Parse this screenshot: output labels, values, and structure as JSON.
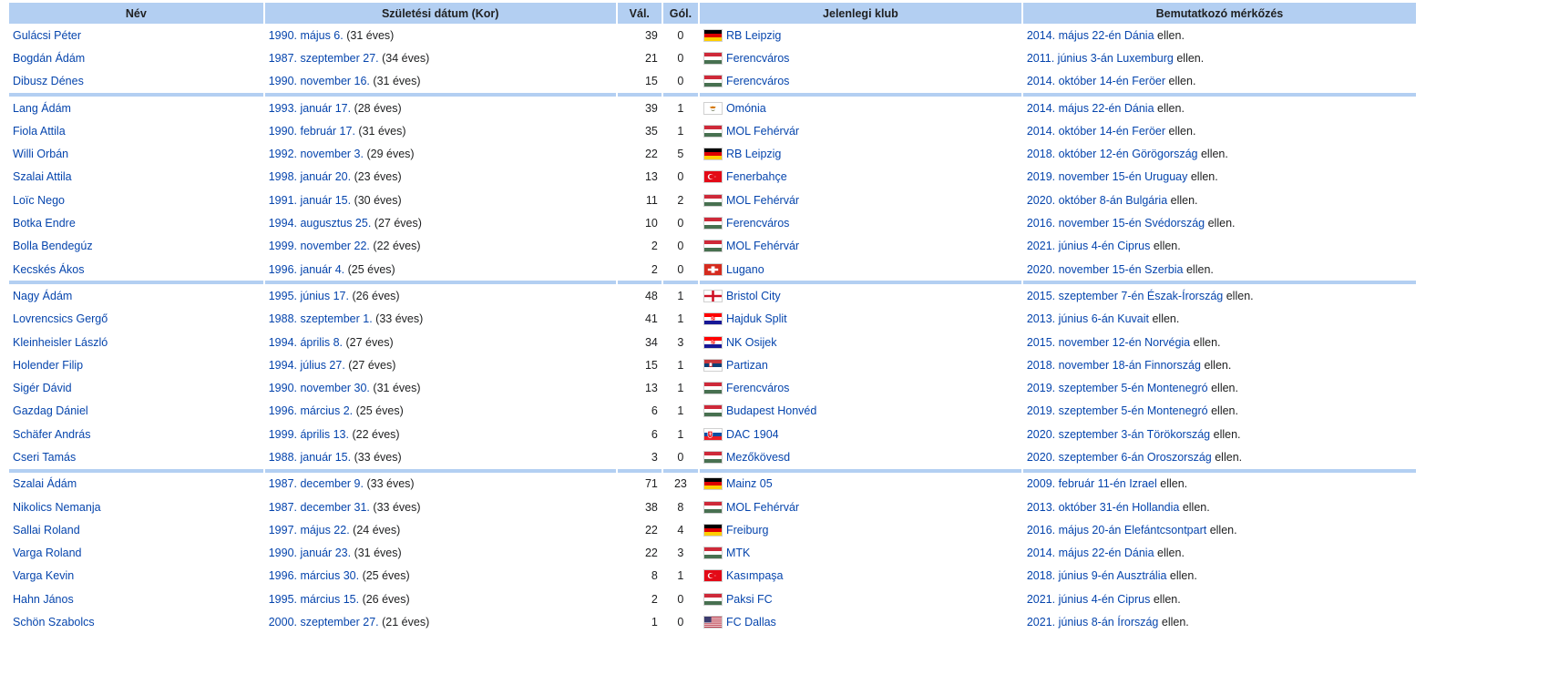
{
  "headers": {
    "name": "Név",
    "dob": "Születési dátum (Kor)",
    "caps": "Vál.",
    "goals": "Gól.",
    "club": "Jelenlegi klub",
    "debut": "Bemutatkozó mérkőzés"
  },
  "groups": [
    [
      {
        "name": "Gulácsi Péter",
        "dob": "1990. május 6.",
        "age": "(31 éves)",
        "caps": "39",
        "goals": "0",
        "flag": "germany-flag",
        "club": "RB Leipzig",
        "debut_date": "2014. május 22-én",
        "debut_opp": "Dánia",
        "debut_suffix": "ellen."
      },
      {
        "name": "Bogdán Ádám",
        "dob": "1987. szeptember 27.",
        "age": "(34 éves)",
        "caps": "21",
        "goals": "0",
        "flag": "hungary-flag",
        "club": "Ferencváros",
        "debut_date": "2011. június 3-án",
        "debut_opp": "Luxemburg",
        "debut_suffix": "ellen."
      },
      {
        "name": "Dibusz Dénes",
        "dob": "1990. november 16.",
        "age": "(31 éves)",
        "caps": "15",
        "goals": "0",
        "flag": "hungary-flag",
        "club": "Ferencváros",
        "debut_date": "2014. október 14-én",
        "debut_opp": "Feröer",
        "debut_suffix": "ellen."
      }
    ],
    [
      {
        "name": "Lang Ádám",
        "dob": "1993. január 17.",
        "age": "(28 éves)",
        "caps": "39",
        "goals": "1",
        "flag": "cyprus-flag",
        "club": "Omónia",
        "debut_date": "2014. május 22-én",
        "debut_opp": "Dánia",
        "debut_suffix": "ellen."
      },
      {
        "name": "Fiola Attila",
        "dob": "1990. február 17.",
        "age": "(31 éves)",
        "caps": "35",
        "goals": "1",
        "flag": "hungary-flag",
        "club": "MOL Fehérvár",
        "debut_date": "2014. október 14-én",
        "debut_opp": "Feröer",
        "debut_suffix": "ellen."
      },
      {
        "name": "Willi Orbán",
        "dob": "1992. november 3.",
        "age": "(29 éves)",
        "caps": "22",
        "goals": "5",
        "flag": "germany-flag",
        "club": "RB Leipzig",
        "debut_date": "2018. október 12-én",
        "debut_opp": "Görögország",
        "debut_suffix": "ellen."
      },
      {
        "name": "Szalai Attila",
        "dob": "1998. január 20.",
        "age": "(23 éves)",
        "caps": "13",
        "goals": "0",
        "flag": "turkey-flag",
        "club": "Fenerbahçe",
        "debut_date": "2019. november 15-én",
        "debut_opp": "Uruguay",
        "debut_suffix": "ellen."
      },
      {
        "name": "Loïc Nego",
        "dob": "1991. január 15.",
        "age": "(30 éves)",
        "caps": "11",
        "goals": "2",
        "flag": "hungary-flag",
        "club": "MOL Fehérvár",
        "debut_date": "2020. október 8-án",
        "debut_opp": "Bulgária",
        "debut_suffix": "ellen."
      },
      {
        "name": "Botka Endre",
        "dob": "1994. augusztus 25.",
        "age": "(27 éves)",
        "caps": "10",
        "goals": "0",
        "flag": "hungary-flag",
        "club": "Ferencváros",
        "debut_date": "2016. november 15-én",
        "debut_opp": "Svédország",
        "debut_suffix": "ellen."
      },
      {
        "name": "Bolla Bendegúz",
        "dob": "1999. november 22.",
        "age": "(22 éves)",
        "caps": "2",
        "goals": "0",
        "flag": "hungary-flag",
        "club": "MOL Fehérvár",
        "debut_date": "2021. június 4-én",
        "debut_opp": "Ciprus",
        "debut_suffix": "ellen."
      },
      {
        "name": "Kecskés Ákos",
        "dob": "1996. január 4.",
        "age": "(25 éves)",
        "caps": "2",
        "goals": "0",
        "flag": "switzerland-flag",
        "club": "Lugano",
        "debut_date": "2020. november 15-én",
        "debut_opp": "Szerbia",
        "debut_suffix": "ellen."
      }
    ],
    [
      {
        "name": "Nagy Ádám",
        "dob": "1995. június 17.",
        "age": "(26 éves)",
        "caps": "48",
        "goals": "1",
        "flag": "england-flag",
        "club": "Bristol City",
        "debut_date": "2015. szeptember 7-én",
        "debut_opp": "Észak-Írország",
        "debut_suffix": "ellen."
      },
      {
        "name": "Lovrencsics Gergő",
        "dob": "1988. szeptember 1.",
        "age": "(33 éves)",
        "caps": "41",
        "goals": "1",
        "flag": "croatia-flag",
        "club": "Hajduk Split",
        "debut_date": "2013. június 6-án",
        "debut_opp": "Kuvait",
        "debut_suffix": "ellen."
      },
      {
        "name": "Kleinheisler László",
        "dob": "1994. április 8.",
        "age": "(27 éves)",
        "caps": "34",
        "goals": "3",
        "flag": "croatia-flag",
        "club": "NK Osijek",
        "debut_date": "2015. november 12-én",
        "debut_opp": "Norvégia",
        "debut_suffix": "ellen."
      },
      {
        "name": "Holender Filip",
        "dob": "1994. július 27.",
        "age": "(27 éves)",
        "caps": "15",
        "goals": "1",
        "flag": "serbia-flag",
        "club": "Partizan",
        "debut_date": "2018. november 18-án",
        "debut_opp": "Finnország",
        "debut_suffix": "ellen."
      },
      {
        "name": "Sigér Dávid",
        "dob": "1990. november 30.",
        "age": "(31 éves)",
        "caps": "13",
        "goals": "1",
        "flag": "hungary-flag",
        "club": "Ferencváros",
        "debut_date": "2019. szeptember 5-én",
        "debut_opp": "Montenegró",
        "debut_suffix": "ellen."
      },
      {
        "name": "Gazdag Dániel",
        "dob": "1996. március 2.",
        "age": "(25 éves)",
        "caps": "6",
        "goals": "1",
        "flag": "hungary-flag",
        "club": "Budapest Honvéd",
        "debut_date": "2019. szeptember 5-én",
        "debut_opp": "Montenegró",
        "debut_suffix": "ellen."
      },
      {
        "name": "Schäfer András",
        "dob": "1999. április 13.",
        "age": "(22 éves)",
        "caps": "6",
        "goals": "1",
        "flag": "slovakia-flag",
        "club": "DAC 1904",
        "debut_date": "2020. szeptember 3-án",
        "debut_opp": "Törökország",
        "debut_suffix": "ellen."
      },
      {
        "name": "Cseri Tamás",
        "dob": "1988. január 15.",
        "age": "(33 éves)",
        "caps": "3",
        "goals": "0",
        "flag": "hungary-flag",
        "club": "Mezőkövesd",
        "debut_date": "2020. szeptember 6-án",
        "debut_opp": "Oroszország",
        "debut_suffix": "ellen."
      }
    ],
    [
      {
        "name": "Szalai Ádám",
        "dob": "1987. december 9.",
        "age": "(33 éves)",
        "caps": "71",
        "goals": "23",
        "flag": "germany-flag",
        "club": "Mainz 05",
        "debut_date": "2009. február 11-én",
        "debut_opp": "Izrael",
        "debut_suffix": "ellen."
      },
      {
        "name": "Nikolics Nemanja",
        "dob": "1987. december 31.",
        "age": "(33 éves)",
        "caps": "38",
        "goals": "8",
        "flag": "hungary-flag",
        "club": "MOL Fehérvár",
        "debut_date": "2013. október 31-én",
        "debut_opp": "Hollandia",
        "debut_suffix": "ellen."
      },
      {
        "name": "Sallai Roland",
        "dob": "1997. május 22.",
        "age": "(24 éves)",
        "caps": "22",
        "goals": "4",
        "flag": "germany-flag",
        "club": "Freiburg",
        "debut_date": "2016. május 20-án",
        "debut_opp": "Elefántcsontpart",
        "debut_suffix": "ellen."
      },
      {
        "name": "Varga Roland",
        "dob": "1990. január 23.",
        "age": "(31 éves)",
        "caps": "22",
        "goals": "3",
        "flag": "hungary-flag",
        "club": "MTK",
        "debut_date": "2014. május 22-én",
        "debut_opp": "Dánia",
        "debut_suffix": "ellen."
      },
      {
        "name": "Varga Kevin",
        "dob": "1996. március 30.",
        "age": "(25 éves)",
        "caps": "8",
        "goals": "1",
        "flag": "turkey-flag",
        "club": "Kasımpaşa",
        "debut_date": "2018. június 9-én",
        "debut_opp": "Ausztrália",
        "debut_suffix": "ellen."
      },
      {
        "name": "Hahn János",
        "dob": "1995. március 15.",
        "age": "(26 éves)",
        "caps": "2",
        "goals": "0",
        "flag": "hungary-flag",
        "club": "Paksi FC",
        "debut_date": "2021. június 4-én",
        "debut_opp": "Ciprus",
        "debut_suffix": "ellen."
      },
      {
        "name": "Schön Szabolcs",
        "dob": "2000. szeptember 27.",
        "age": "(21 éves)",
        "caps": "1",
        "goals": "0",
        "flag": "usa-flag",
        "club": "FC Dallas",
        "debut_date": "2021. június 8-án",
        "debut_opp": "Írország",
        "debut_suffix": "ellen."
      }
    ]
  ]
}
